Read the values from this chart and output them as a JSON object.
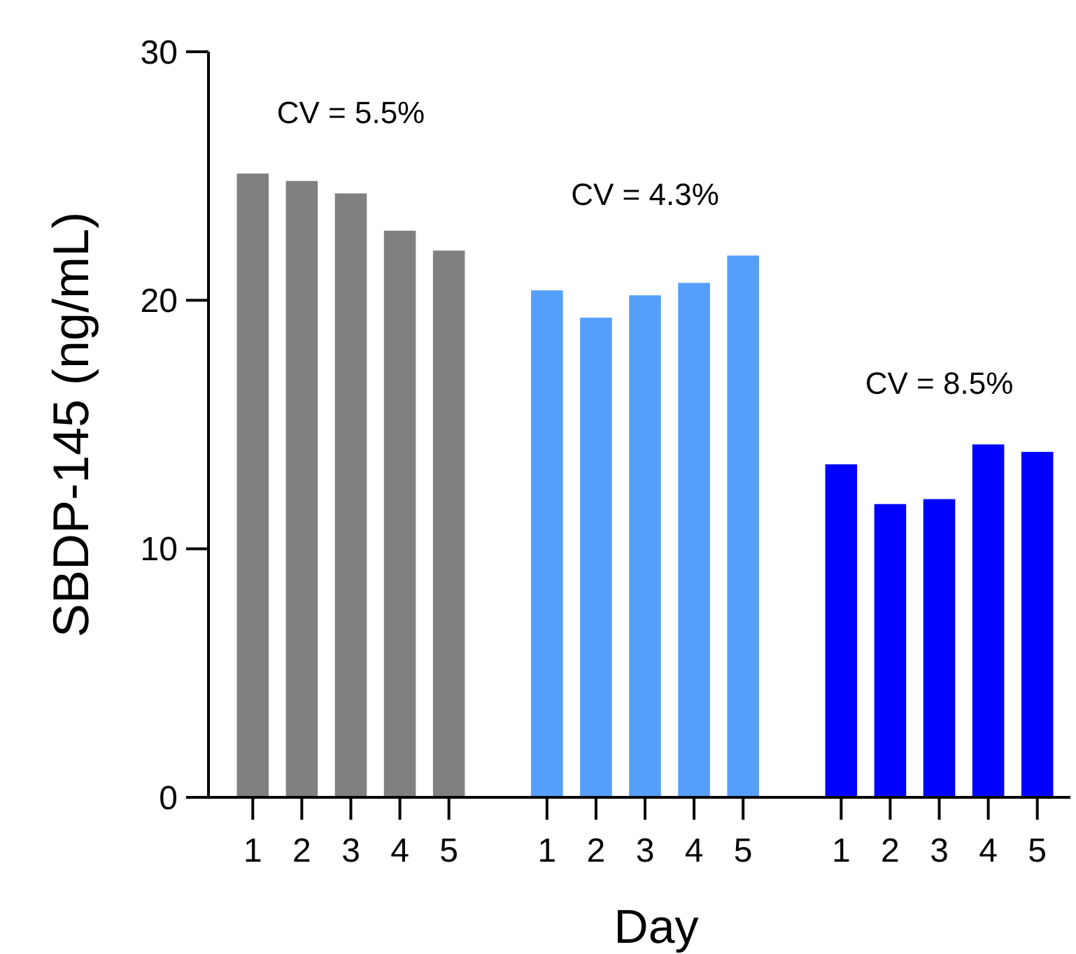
{
  "chart_data": {
    "type": "bar",
    "xlabel": "Day",
    "ylabel": "SBDP-145 (ng/mL)",
    "categories": [
      "1",
      "2",
      "3",
      "4",
      "5",
      null,
      "1",
      "2",
      "3",
      "4",
      "5",
      null,
      "1",
      "2",
      "3",
      "4",
      "5"
    ],
    "values": [
      25.1,
      24.8,
      24.3,
      22.8,
      22.0,
      null,
      20.4,
      19.3,
      20.2,
      20.7,
      21.8,
      null,
      13.4,
      11.8,
      12.0,
      14.2,
      13.9
    ],
    "colors": [
      "#808080",
      "#808080",
      "#808080",
      "#808080",
      "#808080",
      null,
      "#559ffb",
      "#559ffb",
      "#559ffb",
      "#559ffb",
      "#559ffb",
      null,
      "#0000ff",
      "#0000ff",
      "#0000ff",
      "#0000ff",
      "#0000ff"
    ],
    "ylim": [
      0,
      30
    ],
    "yticks": [
      0,
      10,
      20,
      30
    ],
    "grid": false,
    "annotations": [
      "CV = 5.5%",
      "CV = 4.3%",
      "CV = 8.5%"
    ]
  }
}
